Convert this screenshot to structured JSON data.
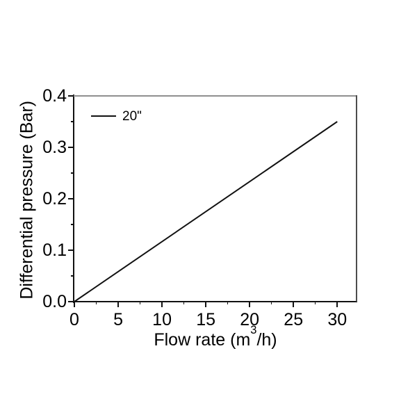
{
  "chart_data": {
    "type": "line",
    "title": "",
    "xlabel": {
      "prefix": "Flow rate (m",
      "sup": "3",
      "suffix": "/h)"
    },
    "ylabel": "Differential pressure (Bar)",
    "xlim": [
      0,
      32.2
    ],
    "ylim": [
      0,
      0.4
    ],
    "grid": false,
    "x_ticks": {
      "values": [
        0,
        5,
        10,
        15,
        20,
        25,
        30
      ],
      "labels": [
        "0",
        "5",
        "10",
        "15",
        "20",
        "25",
        "30"
      ],
      "minor_values": [
        2.5,
        7.5,
        12.5,
        17.5,
        22.5,
        27.5
      ]
    },
    "y_ticks": {
      "values": [
        0.0,
        0.1,
        0.2,
        0.3,
        0.4
      ],
      "labels": [
        "0.0",
        "0.1",
        "0.2",
        "0.3",
        "0.4"
      ],
      "minor_values": [
        0.05,
        0.15,
        0.25,
        0.35
      ]
    },
    "legend": {
      "position": "top-left"
    },
    "series": [
      {
        "name": "20\"",
        "x": [
          0,
          30
        ],
        "y": [
          0.0,
          0.35
        ],
        "color": "#111111"
      }
    ],
    "colors": {
      "axis": "#111111",
      "frame_top": "#8f8f8f",
      "frame_right": "#4d4d4d",
      "text": "#000000",
      "background": "#ffffff"
    }
  }
}
